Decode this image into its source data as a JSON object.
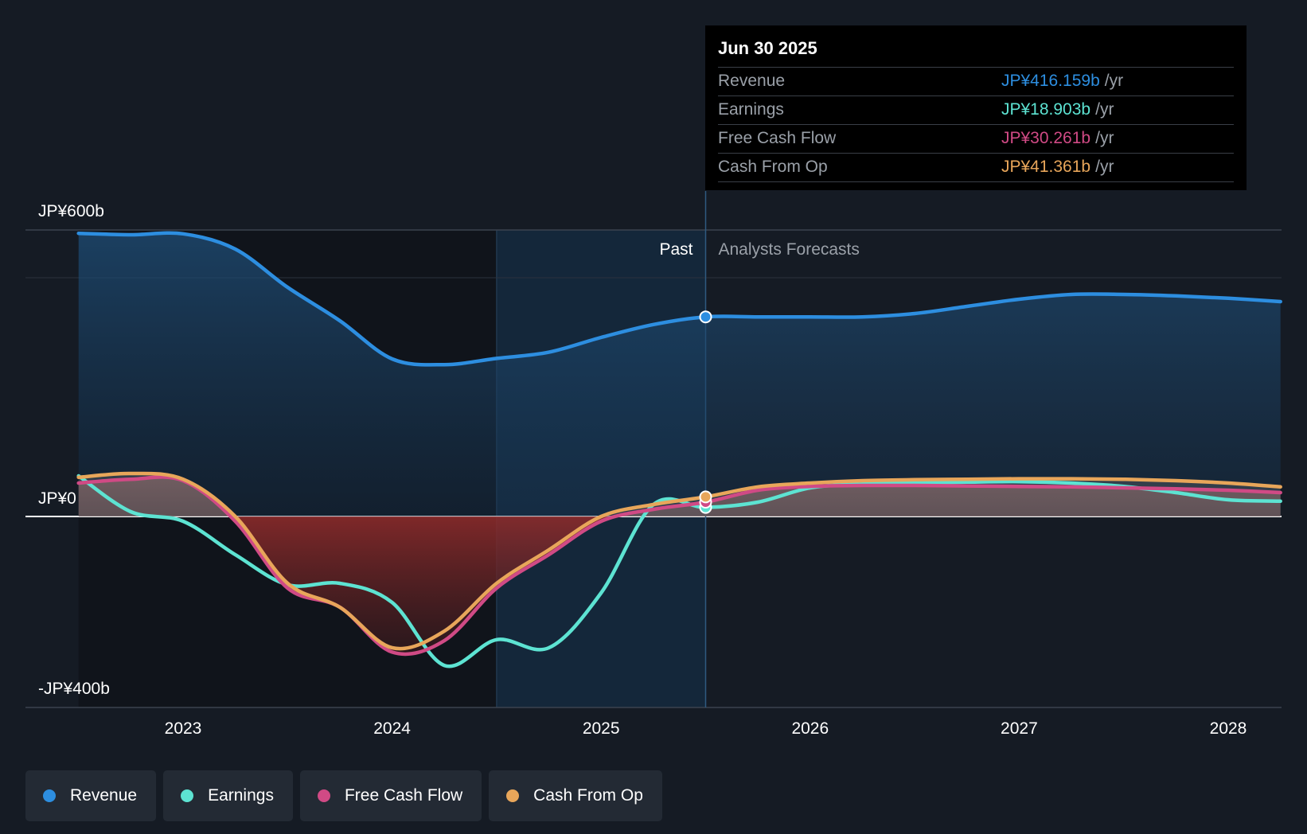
{
  "chart_data": {
    "type": "line",
    "title": "",
    "y_ticks": [
      {
        "value": 600,
        "label": "JP¥600b"
      },
      {
        "value": 0,
        "label": "JP¥0"
      },
      {
        "value": -400,
        "label": "-JP¥400b"
      }
    ],
    "ylim": [
      -400,
      600
    ],
    "xlim": [
      2022.5,
      2028.25
    ],
    "x_ticks": [
      "2023",
      "2024",
      "2025",
      "2026",
      "2027",
      "2028"
    ],
    "past_label": "Past",
    "forecast_label": "Analysts Forecasts",
    "divider_x": 2025.5,
    "series": [
      {
        "name": "Revenue",
        "color": "#2d8ee0",
        "fill": true,
        "points": [
          [
            2022.5,
            593
          ],
          [
            2022.75,
            590
          ],
          [
            2023.0,
            592
          ],
          [
            2023.25,
            560
          ],
          [
            2023.5,
            480
          ],
          [
            2023.75,
            410
          ],
          [
            2024.0,
            330
          ],
          [
            2024.25,
            318
          ],
          [
            2024.5,
            331
          ],
          [
            2024.75,
            344
          ],
          [
            2025.0,
            375
          ],
          [
            2025.25,
            402
          ],
          [
            2025.5,
            418
          ],
          [
            2025.75,
            418
          ],
          [
            2026.0,
            418
          ],
          [
            2026.25,
            418
          ],
          [
            2026.5,
            425
          ],
          [
            2026.75,
            440
          ],
          [
            2027.0,
            455
          ],
          [
            2027.25,
            465
          ],
          [
            2027.5,
            465
          ],
          [
            2027.75,
            462
          ],
          [
            2028.0,
            457
          ],
          [
            2028.25,
            450
          ]
        ]
      },
      {
        "name": "Earnings",
        "color": "#5de3d2",
        "fill": false,
        "points": [
          [
            2022.5,
            85
          ],
          [
            2022.75,
            10
          ],
          [
            2023.0,
            -10
          ],
          [
            2023.25,
            -80
          ],
          [
            2023.5,
            -143
          ],
          [
            2023.75,
            -140
          ],
          [
            2024.0,
            -180
          ],
          [
            2024.25,
            -312
          ],
          [
            2024.5,
            -258
          ],
          [
            2024.75,
            -275
          ],
          [
            2025.0,
            -160
          ],
          [
            2025.25,
            25
          ],
          [
            2025.5,
            19
          ],
          [
            2025.75,
            30
          ],
          [
            2026.0,
            60
          ],
          [
            2026.25,
            68
          ],
          [
            2026.5,
            70
          ],
          [
            2026.75,
            72
          ],
          [
            2027.0,
            73
          ],
          [
            2027.25,
            70
          ],
          [
            2027.5,
            63
          ],
          [
            2027.75,
            50
          ],
          [
            2028.0,
            35
          ],
          [
            2028.25,
            32
          ]
        ]
      },
      {
        "name": "Free Cash Flow",
        "color": "#d04a85",
        "fill": true,
        "points": [
          [
            2022.5,
            70
          ],
          [
            2022.75,
            78
          ],
          [
            2023.0,
            75
          ],
          [
            2023.25,
            -10
          ],
          [
            2023.5,
            -150
          ],
          [
            2023.75,
            -190
          ],
          [
            2024.0,
            -284
          ],
          [
            2024.25,
            -260
          ],
          [
            2024.5,
            -150
          ],
          [
            2024.75,
            -80
          ],
          [
            2025.0,
            -10
          ],
          [
            2025.25,
            15
          ],
          [
            2025.5,
            30
          ],
          [
            2025.75,
            55
          ],
          [
            2026.0,
            63
          ],
          [
            2026.25,
            65
          ],
          [
            2026.5,
            65
          ],
          [
            2026.75,
            64
          ],
          [
            2027.0,
            63
          ],
          [
            2027.25,
            62
          ],
          [
            2027.5,
            60
          ],
          [
            2027.75,
            58
          ],
          [
            2028.0,
            55
          ],
          [
            2028.25,
            50
          ]
        ]
      },
      {
        "name": "Cash From Op",
        "color": "#e8a65a",
        "fill": false,
        "points": [
          [
            2022.5,
            82
          ],
          [
            2022.75,
            90
          ],
          [
            2023.0,
            78
          ],
          [
            2023.25,
            0
          ],
          [
            2023.5,
            -140
          ],
          [
            2023.75,
            -190
          ],
          [
            2024.0,
            -275
          ],
          [
            2024.25,
            -240
          ],
          [
            2024.5,
            -140
          ],
          [
            2024.75,
            -70
          ],
          [
            2025.0,
            0
          ],
          [
            2025.25,
            25
          ],
          [
            2025.5,
            41
          ],
          [
            2025.75,
            62
          ],
          [
            2026.0,
            70
          ],
          [
            2026.25,
            75
          ],
          [
            2026.5,
            77
          ],
          [
            2026.75,
            78
          ],
          [
            2027.0,
            79
          ],
          [
            2027.25,
            79
          ],
          [
            2027.5,
            78
          ],
          [
            2027.75,
            75
          ],
          [
            2028.0,
            70
          ],
          [
            2028.25,
            62
          ]
        ]
      }
    ]
  },
  "tooltip": {
    "date": "Jun 30 2025",
    "rows": [
      {
        "label": "Revenue",
        "value": "JP¥416.159b",
        "unit": "/yr",
        "color": "#2d8ee0"
      },
      {
        "label": "Earnings",
        "value": "JP¥18.903b",
        "unit": "/yr",
        "color": "#5de3d2"
      },
      {
        "label": "Free Cash Flow",
        "value": "JP¥30.261b",
        "unit": "/yr",
        "color": "#d04a85"
      },
      {
        "label": "Cash From Op",
        "value": "JP¥41.361b",
        "unit": "/yr",
        "color": "#e8a65a"
      }
    ]
  },
  "legend": [
    {
      "label": "Revenue",
      "color": "#2d8ee0"
    },
    {
      "label": "Earnings",
      "color": "#5de3d2"
    },
    {
      "label": "Free Cash Flow",
      "color": "#d04a85"
    },
    {
      "label": "Cash From Op",
      "color": "#e8a65a"
    }
  ]
}
